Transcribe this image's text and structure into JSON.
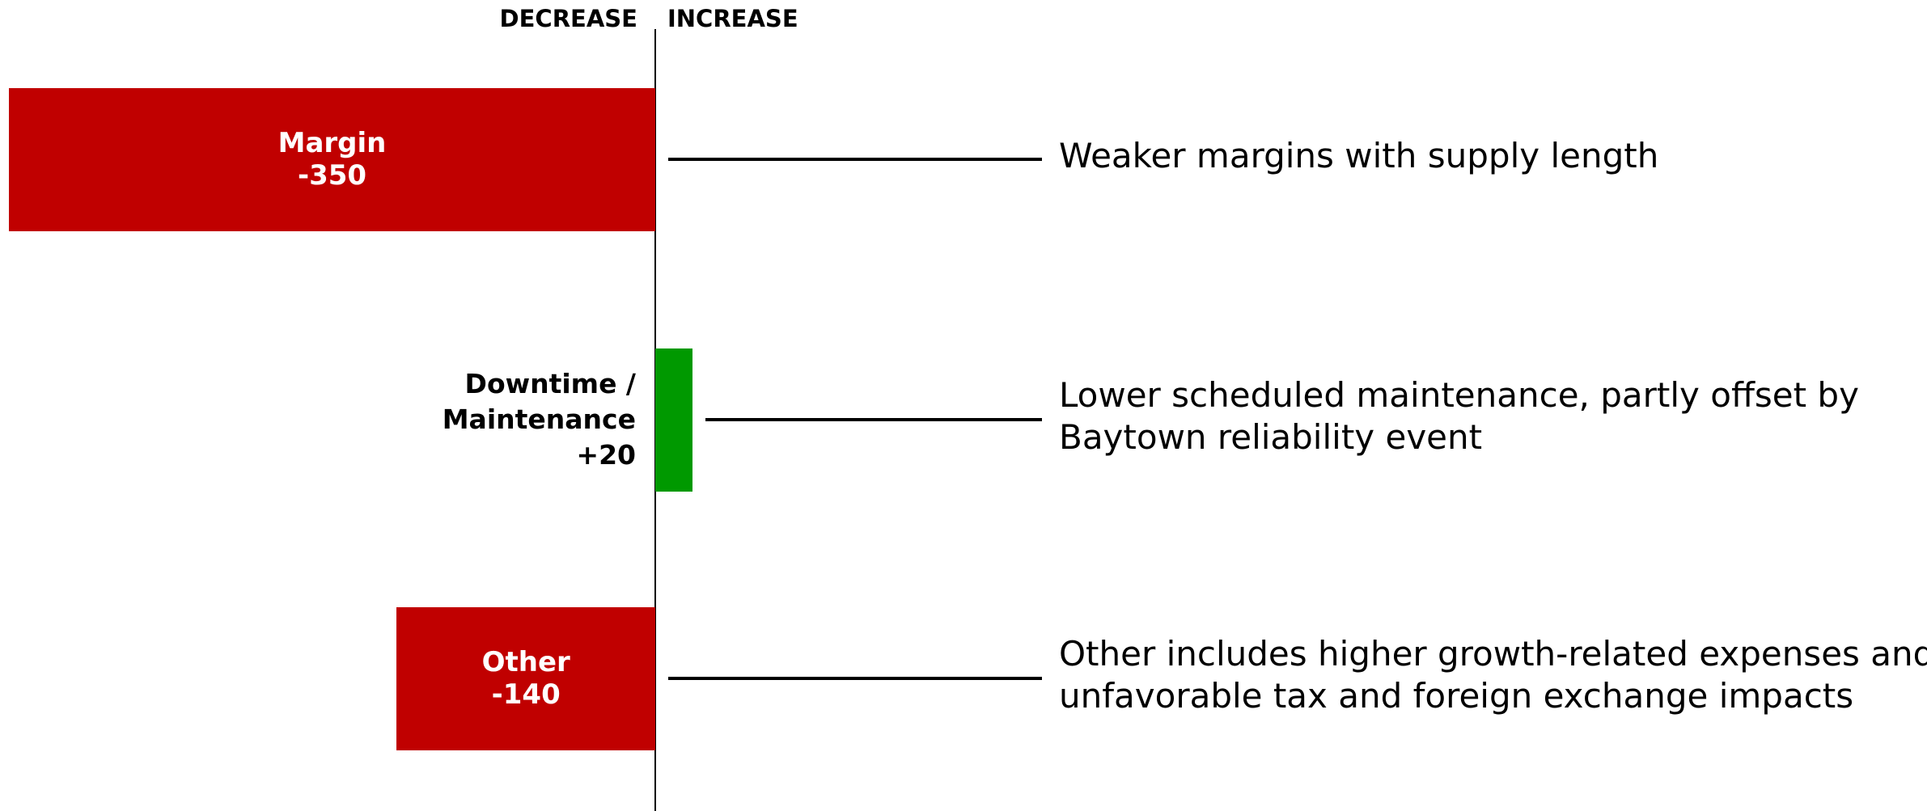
{
  "chart_data": {
    "type": "bar",
    "orientation": "horizontal",
    "headers": [
      "DECREASE",
      "INCREASE"
    ],
    "categories": [
      "Margin",
      "Downtime / Maintenance",
      "Other"
    ],
    "values": [
      -350,
      20,
      -140
    ],
    "value_labels": [
      "-350",
      "+20",
      "-140"
    ],
    "colors": [
      "#c00000",
      "#009900",
      "#c00000"
    ],
    "annotations": [
      [
        "Weaker margins with supply length"
      ],
      [
        "Lower scheduled maintenance, partly offset by",
        "Baytown reliability event"
      ],
      [
        "Other includes higher growth-related expenses and",
        "unfavorable tax and foreign exchange impacts"
      ]
    ]
  }
}
